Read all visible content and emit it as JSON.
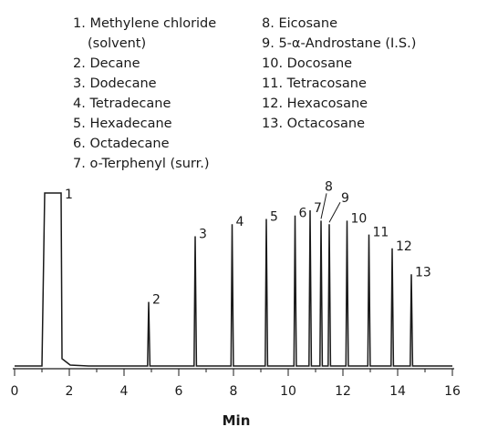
{
  "legend": {
    "left": [
      {
        "text": "1. Methylene chloride"
      },
      {
        "text": "(solvent)",
        "continuation": true
      },
      {
        "text": "2. Decane"
      },
      {
        "text": "3. Dodecane"
      },
      {
        "text": "4. Tetradecane"
      },
      {
        "text": "5. Hexadecane"
      },
      {
        "text": "6. Octadecane"
      },
      {
        "text": "7. o-Terphenyl (surr.)"
      }
    ],
    "right": [
      {
        "text": "8. Eicosane"
      },
      {
        "text": "9. 5-α-Androstane (I.S.)"
      },
      {
        "text": "10. Docosane"
      },
      {
        "text": "11. Tetracosane"
      },
      {
        "text": "12. Hexacosane"
      },
      {
        "text": "13. Octacosane"
      }
    ]
  },
  "chart_data": {
    "type": "line",
    "xlabel": "Min",
    "ylabel": "",
    "xlim": [
      0,
      16
    ],
    "x_ticks": [
      0,
      2,
      4,
      6,
      8,
      10,
      12,
      14,
      16
    ],
    "ylim": [
      0,
      100
    ],
    "grid": false,
    "solvent_peak": {
      "label": "1",
      "start": 1.1,
      "end": 1.7,
      "height": 100
    },
    "peaks": [
      {
        "label": "2",
        "time": 4.9,
        "height": 37
      },
      {
        "label": "3",
        "time": 6.6,
        "height": 75
      },
      {
        "label": "4",
        "time": 7.95,
        "height": 82
      },
      {
        "label": "5",
        "time": 9.2,
        "height": 85
      },
      {
        "label": "6",
        "time": 10.25,
        "height": 87
      },
      {
        "label": "7",
        "time": 10.8,
        "height": 90
      },
      {
        "label": "8",
        "time": 11.2,
        "height": 84
      },
      {
        "label": "9",
        "time": 11.5,
        "height": 82
      },
      {
        "label": "10",
        "time": 12.15,
        "height": 84
      },
      {
        "label": "11",
        "time": 12.95,
        "height": 76
      },
      {
        "label": "12",
        "time": 13.8,
        "height": 68
      },
      {
        "label": "13",
        "time": 14.5,
        "height": 53
      }
    ]
  }
}
